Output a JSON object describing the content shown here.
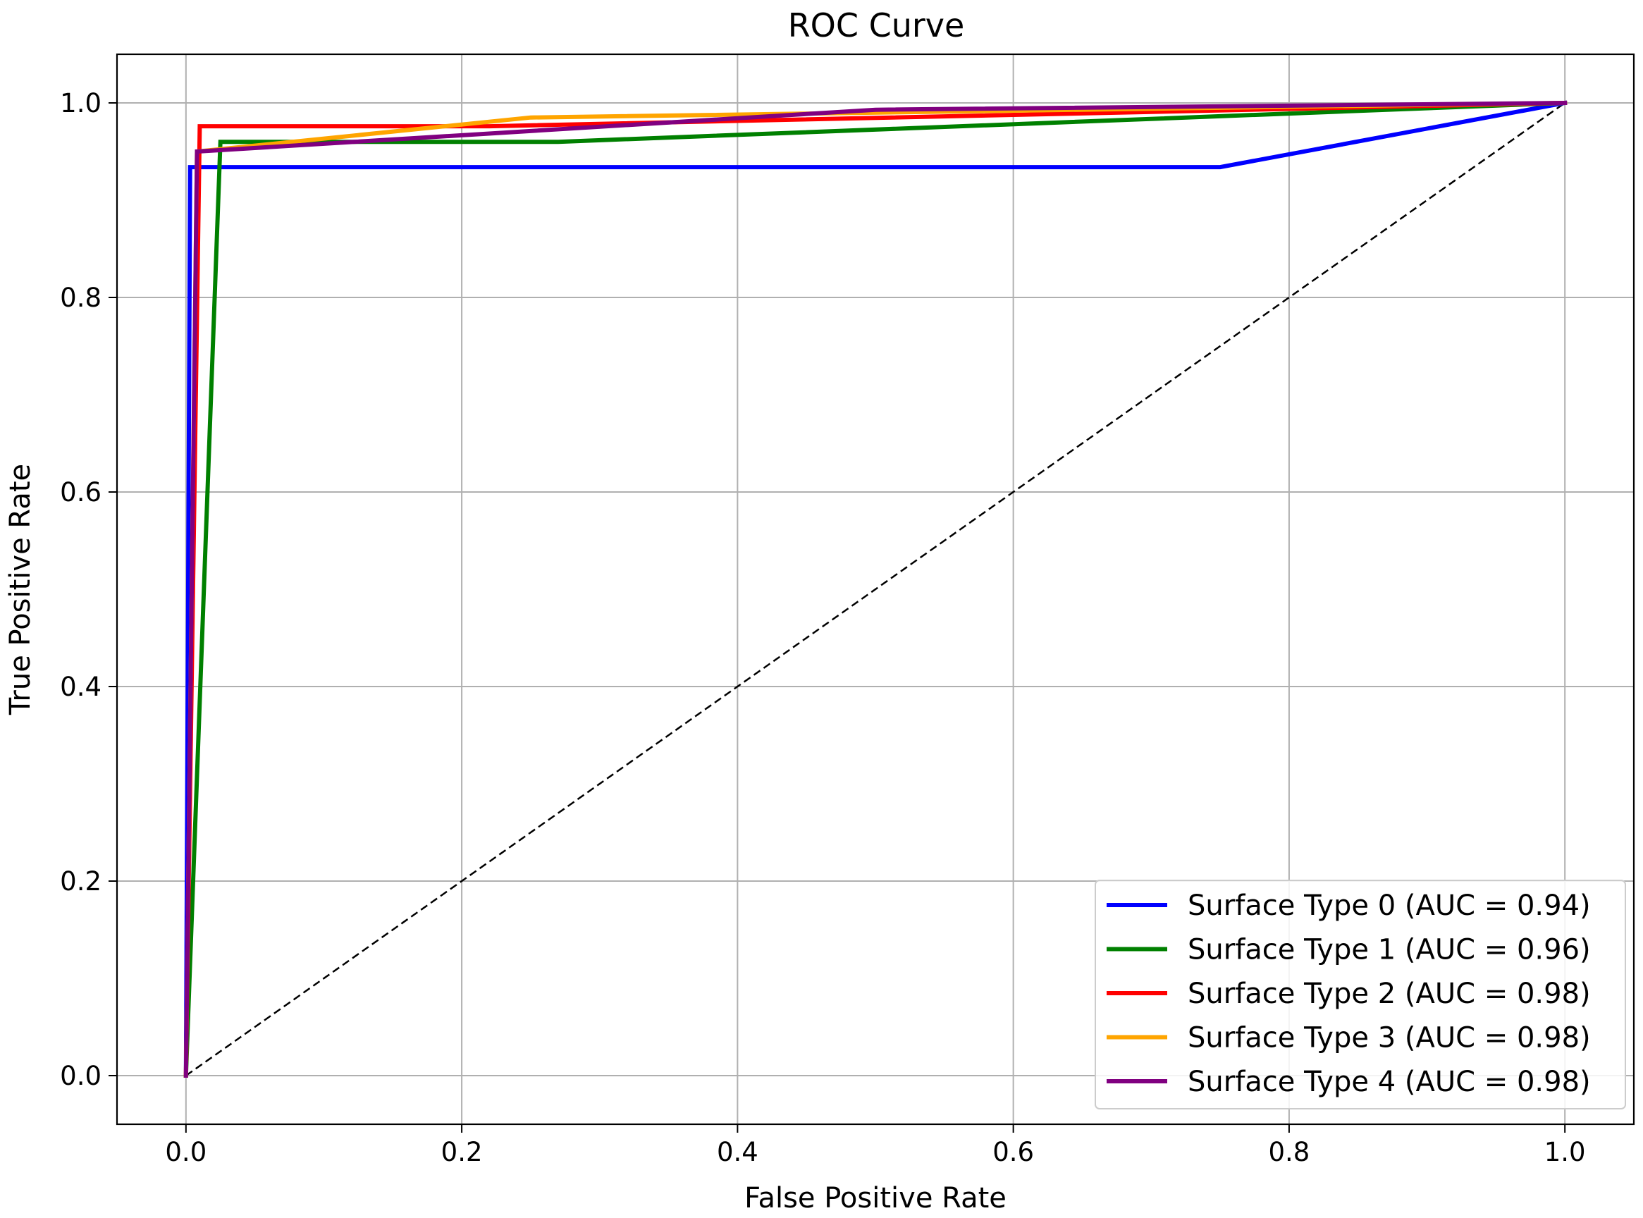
{
  "chart_data": {
    "type": "line",
    "title": "ROC Curve",
    "xlabel": "False Positive Rate",
    "ylabel": "True Positive Rate",
    "xlim": [
      -0.05,
      1.05
    ],
    "ylim": [
      -0.05,
      1.05
    ],
    "grid": true,
    "legend_position": "lower-right",
    "x_ticks": [
      0.0,
      0.2,
      0.4,
      0.6,
      0.8,
      1.0
    ],
    "x_tick_labels": [
      "0.0",
      "0.2",
      "0.4",
      "0.6",
      "0.8",
      "1.0"
    ],
    "y_ticks": [
      0.0,
      0.2,
      0.4,
      0.6,
      0.8,
      1.0
    ],
    "y_tick_labels": [
      "0.0",
      "0.2",
      "0.4",
      "0.6",
      "0.8",
      "1.0"
    ],
    "series": [
      {
        "name": "Surface Type 0 (AUC = 0.94)",
        "color": "#0000ff",
        "points": [
          [
            0.0,
            0.0
          ],
          [
            0.003,
            0.934
          ],
          [
            0.75,
            0.934
          ],
          [
            1.0,
            1.0
          ]
        ]
      },
      {
        "name": "Surface Type 1 (AUC = 0.96)",
        "color": "#008000",
        "points": [
          [
            0.0,
            0.0
          ],
          [
            0.025,
            0.96
          ],
          [
            0.27,
            0.96
          ],
          [
            1.0,
            1.0
          ]
        ]
      },
      {
        "name": "Surface Type 2 (AUC = 0.98)",
        "color": "#ff0000",
        "points": [
          [
            0.0,
            0.0
          ],
          [
            0.01,
            0.976
          ],
          [
            0.22,
            0.976
          ],
          [
            1.0,
            1.0
          ]
        ]
      },
      {
        "name": "Surface Type 3 (AUC = 0.98)",
        "color": "#ffa500",
        "points": [
          [
            0.0,
            0.0
          ],
          [
            0.008,
            0.95
          ],
          [
            0.25,
            0.985
          ],
          [
            1.0,
            1.0
          ]
        ]
      },
      {
        "name": "Surface Type 4 (AUC = 0.98)",
        "color": "#800080",
        "points": [
          [
            0.0,
            0.0
          ],
          [
            0.008,
            0.95
          ],
          [
            0.5,
            0.993
          ],
          [
            1.0,
            1.0
          ]
        ]
      }
    ],
    "reference_line": {
      "style": "dashed",
      "color": "#000000",
      "points": [
        [
          0.0,
          0.0
        ],
        [
          1.0,
          1.0
        ]
      ]
    }
  }
}
